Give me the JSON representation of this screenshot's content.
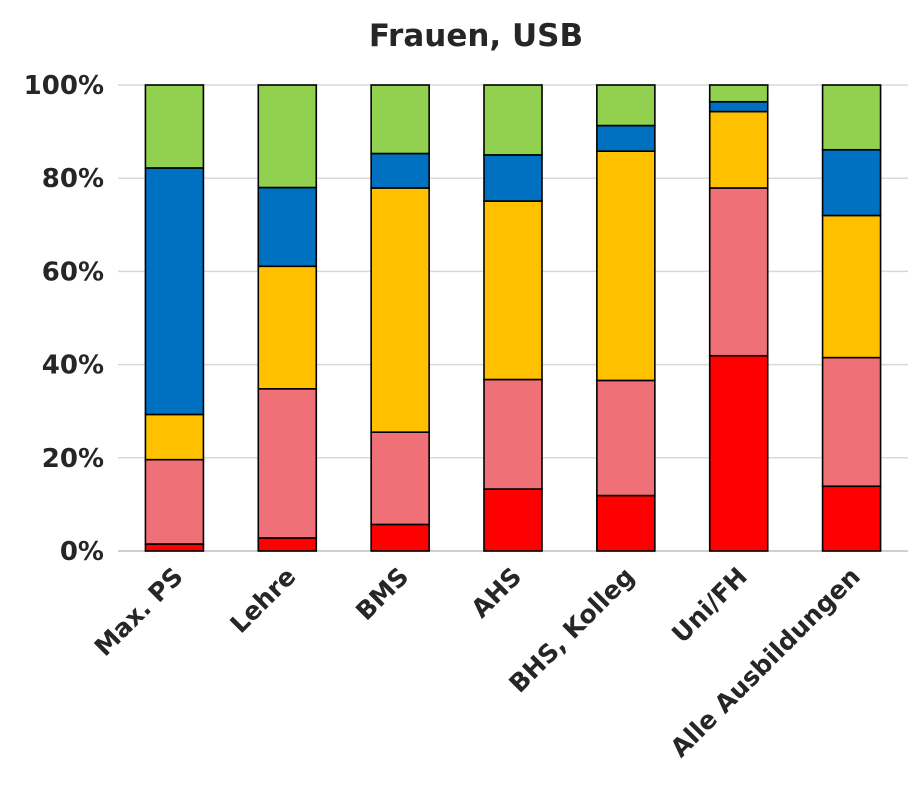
{
  "chart_data": {
    "type": "bar",
    "stacked": true,
    "percent": true,
    "title": "Frauen, USB",
    "xlabel": "",
    "ylabel": "",
    "ylim": [
      0,
      100
    ],
    "yticks": [
      "0%",
      "20%",
      "40%",
      "60%",
      "80%",
      "100%"
    ],
    "grid": true,
    "legend": "none",
    "categories": [
      "Max. PS",
      "Lehre",
      "BMS",
      "AHS",
      "BHS, Kolleg",
      "Uni/FH",
      "Alle Ausbildungen"
    ],
    "series": [
      {
        "color": "#ff0000",
        "values": [
          1.5,
          2.8,
          5.7,
          13.3,
          11.9,
          41.9,
          13.9
        ]
      },
      {
        "color": "#f07078",
        "values": [
          18.1,
          32.0,
          19.8,
          23.5,
          24.7,
          36.0,
          27.6
        ]
      },
      {
        "color": "#ffc000",
        "values": [
          9.7,
          26.3,
          52.4,
          38.3,
          49.2,
          16.4,
          30.5
        ]
      },
      {
        "color": "#0070c0",
        "values": [
          52.9,
          16.9,
          7.4,
          9.9,
          5.5,
          2.1,
          14.1
        ]
      },
      {
        "color": "#92d050",
        "values": [
          17.8,
          22.0,
          14.7,
          15.0,
          8.7,
          3.6,
          13.9
        ]
      }
    ]
  }
}
